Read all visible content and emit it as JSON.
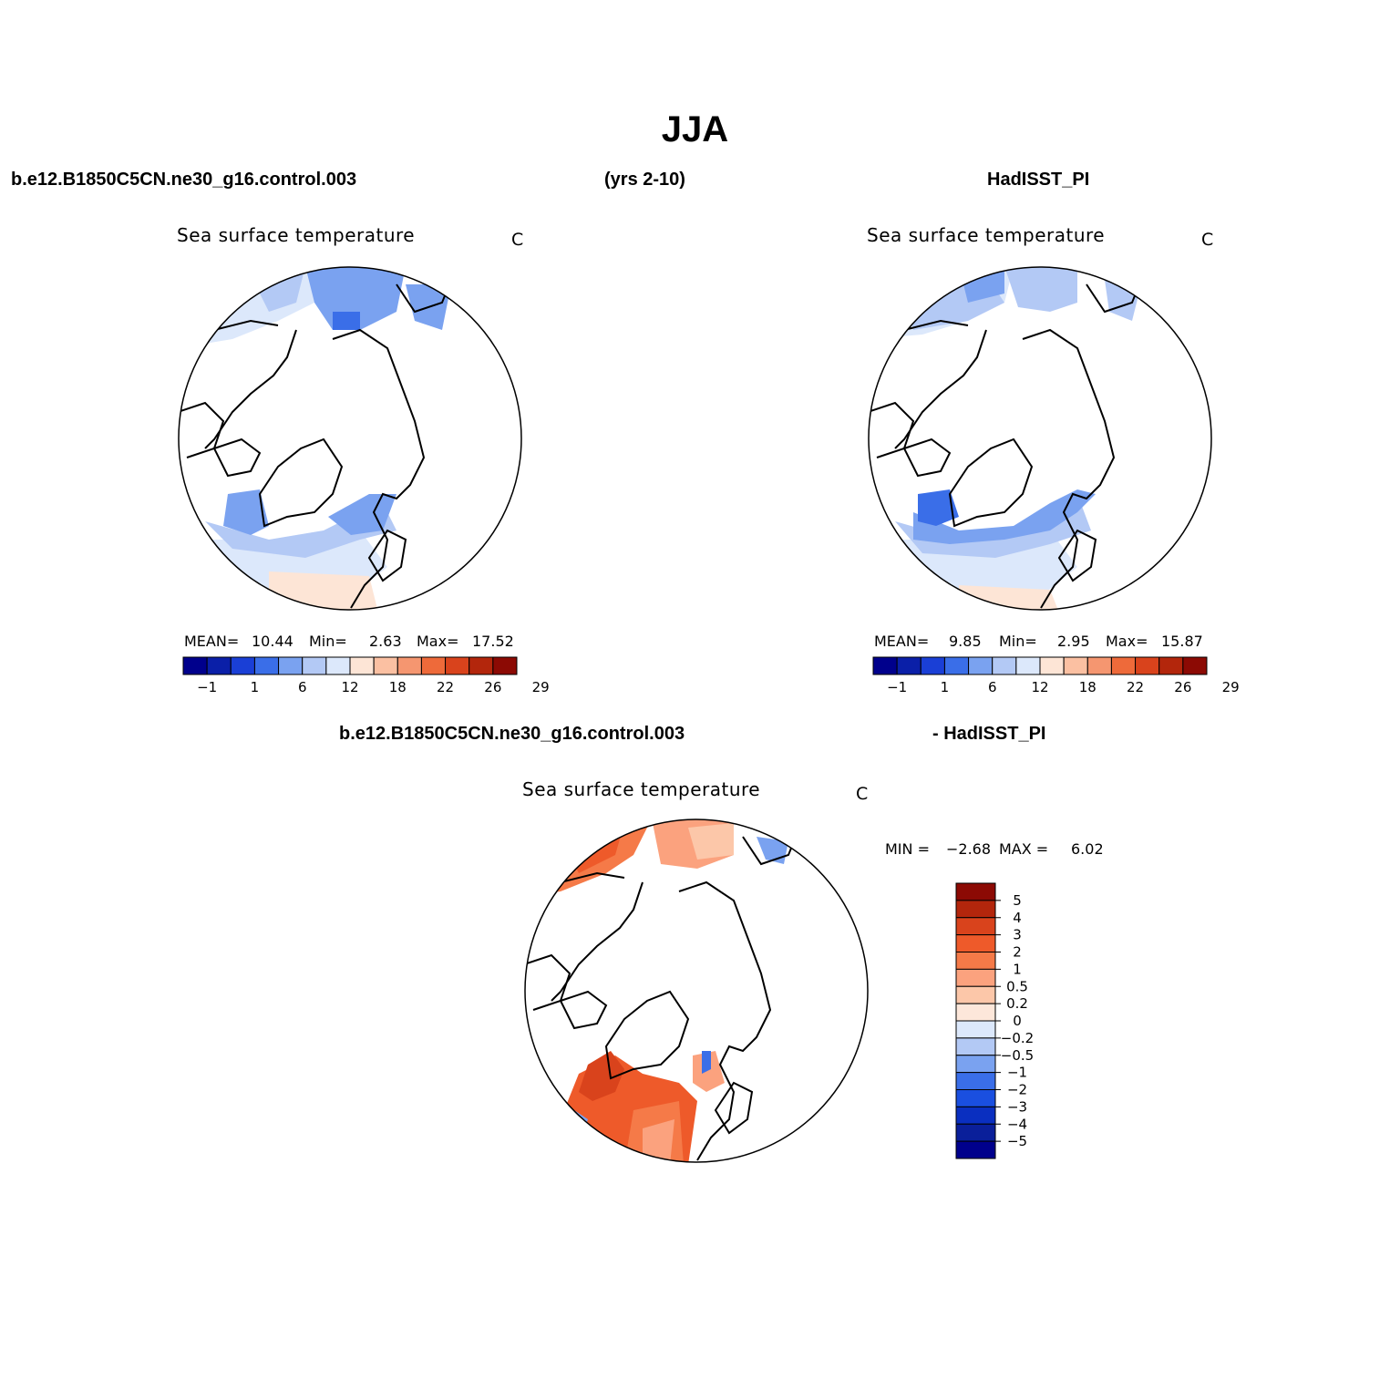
{
  "title": "JJA",
  "header": {
    "case_name": "b.e12.B1850C5CN.ne30_g16.control.003",
    "years": "(yrs 2-10)",
    "obs_name": "HadISST_PI",
    "diff_case": "b.e12.B1850C5CN.ne30_g16.control.003",
    "diff_obs": "- HadISST_PI"
  },
  "panels": [
    {
      "title": "Sea surface temperature",
      "units": "C",
      "mean_label": "MEAN=",
      "mean": "10.44",
      "min_label": "Min=",
      "min": "2.63",
      "max_label": "Max=",
      "max": "17.52"
    },
    {
      "title": "Sea surface temperature",
      "units": "C",
      "mean_label": "MEAN=",
      "mean": "9.85",
      "min_label": "Min=",
      "min": "2.95",
      "max_label": "Max=",
      "max": "15.87"
    }
  ],
  "diff_panel": {
    "title": "Sea surface temperature",
    "units": "C",
    "min_label": "MIN =",
    "min": "−2.68",
    "max_label": "MAX =",
    "max": "6.02"
  },
  "colorbar": {
    "labels": [
      "−1",
      "1",
      "6",
      "12",
      "18",
      "22",
      "26",
      "29"
    ],
    "colors": [
      "#00008c",
      "#0a1fa8",
      "#1a3fd6",
      "#3a6ee8",
      "#7aa2f0",
      "#b3c9f5",
      "#dce8fb",
      "#fde5d6",
      "#fbc0a2",
      "#f59670",
      "#ee6a3a",
      "#d9431c",
      "#b3260c",
      "#8c0a04"
    ]
  },
  "diff_colorbar": {
    "labels": [
      "5",
      "4",
      "3",
      "2",
      "1",
      "0.5",
      "0.2",
      "0",
      "−0.2",
      "−0.5",
      "−1",
      "−2",
      "−3",
      "−4",
      "−5"
    ],
    "colors": [
      "#8c0a04",
      "#b3260c",
      "#d9431c",
      "#ee5a2a",
      "#f57a48",
      "#fba27e",
      "#fcc7a9",
      "#fde7da",
      "#dce8fb",
      "#b3c9f5",
      "#7aa2f0",
      "#3a6ee8",
      "#1a4fe0",
      "#0a2fc0",
      "#0a1f9a",
      "#00008c"
    ]
  }
}
